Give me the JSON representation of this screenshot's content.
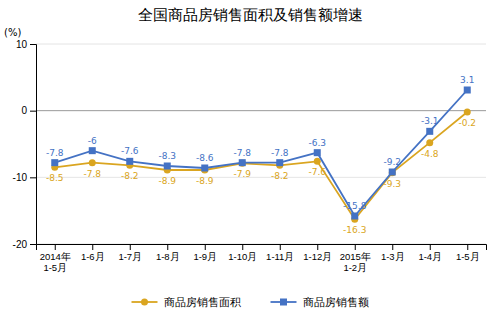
{
  "chart_data": {
    "type": "line",
    "title": "全国商品房销售面积及销售额增速",
    "ylabel": "(%)",
    "categories": [
      "2014年\n1-5月",
      "1-6月",
      "1-7月",
      "1-8月",
      "1-9月",
      "1-10月",
      "1-11月",
      "1-12月",
      "2015年\n1-2月",
      "1-3月",
      "1-4月",
      "1-5月"
    ],
    "series": [
      {
        "name": "商品房销售面积",
        "color": "#DAA520",
        "marker": "circle",
        "values": [
          -8.5,
          -7.8,
          -8.2,
          -8.9,
          -8.9,
          -7.9,
          -8.2,
          -7.6,
          -16.3,
          -9.3,
          -4.8,
          -0.2
        ]
      },
      {
        "name": "商品房销售额",
        "color": "#4472C4",
        "marker": "square",
        "values": [
          -7.8,
          -6.0,
          -7.6,
          -8.3,
          -8.6,
          -7.8,
          -7.8,
          -6.3,
          -15.8,
          -9.2,
          -3.1,
          3.1
        ]
      }
    ],
    "ylim": [
      -20,
      10
    ],
    "yticks": [
      -20,
      -10,
      0,
      10
    ],
    "grid": true,
    "legend": "bottom",
    "data_labels": true
  }
}
